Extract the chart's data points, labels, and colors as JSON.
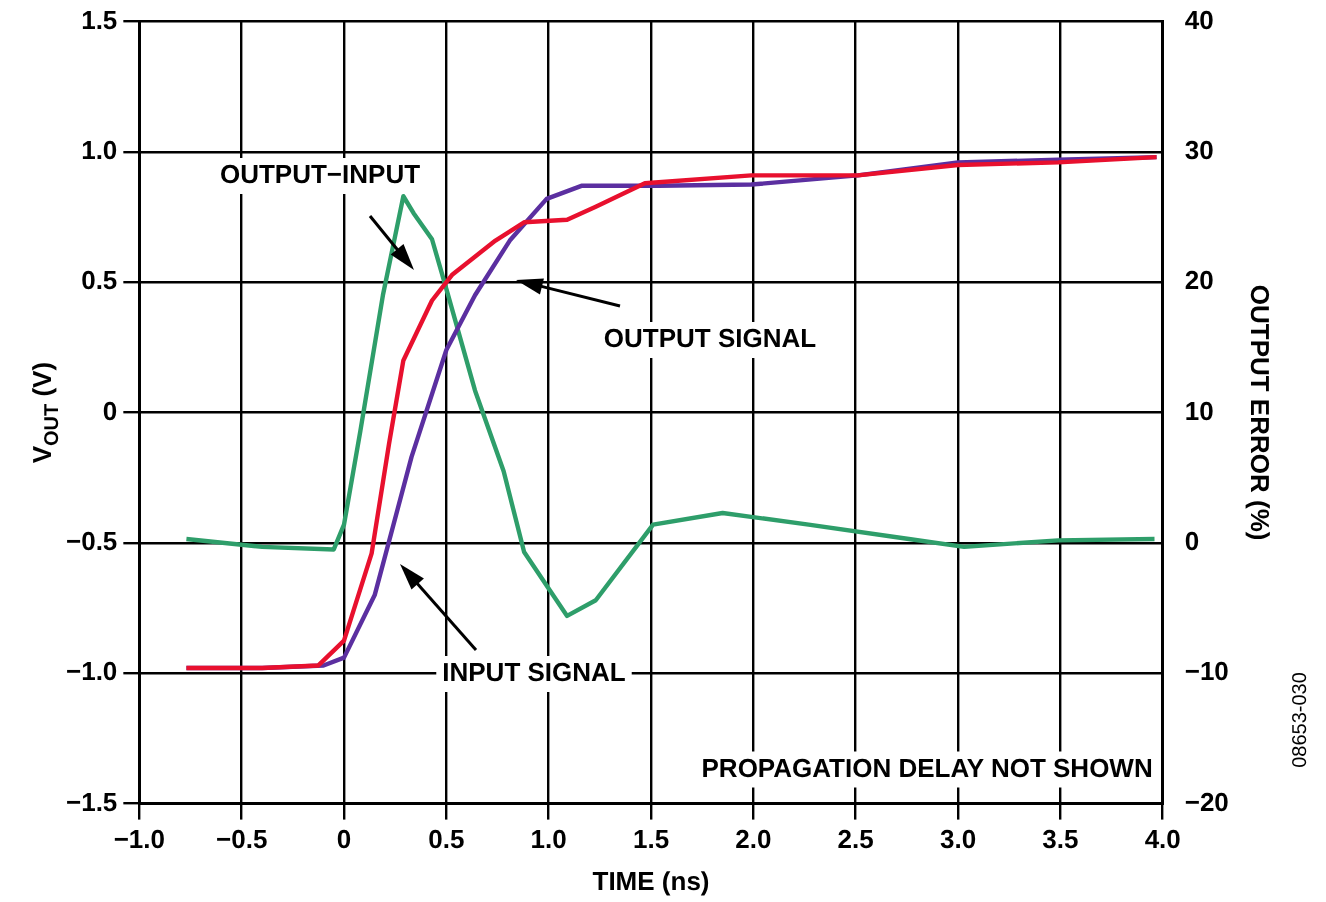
{
  "chart_data": {
    "type": "line",
    "xlabel": "TIME (ns)",
    "ylabel": "V$_{OUT}$ (V)",
    "y2label": "OUTPUT ERROR (%)",
    "series": [
      {
        "color": "#e8102e",
        "x": [
          -0.77,
          -0.4,
          -0.125,
          0,
          0.135,
          0.22,
          0.29,
          0.43,
          0.53,
          0.74,
          0.88,
          1.09,
          1.23,
          1.47,
          1.99,
          2.51,
          3.0,
          3.49,
          3.97
        ],
        "values": [
          -0.98,
          -0.98,
          -0.97,
          -0.875,
          -0.54,
          -0.12,
          0.2,
          0.43,
          0.53,
          0.66,
          0.73,
          0.74,
          0.79,
          0.88,
          0.91,
          0.91,
          0.95,
          0.96,
          0.98
        ]
      },
      {
        "color": "#5b2fa0",
        "x": [
          -0.77,
          -0.4,
          -0.1,
          0,
          0.15,
          0.33,
          0.5,
          0.64,
          0.81,
          0.99,
          1.16,
          1.54,
          1.99,
          2.51,
          3.0,
          3.49,
          3.97
        ],
        "values": [
          -0.98,
          -0.98,
          -0.97,
          -0.94,
          -0.7,
          -0.17,
          0.24,
          0.45,
          0.66,
          0.82,
          0.87,
          0.87,
          0.875,
          0.91,
          0.96,
          0.97,
          0.98
        ]
      },
      {
        "color": "#2e9e6a",
        "axis": "y2",
        "x": [
          -0.77,
          -0.4,
          -0.05,
          0,
          0.08,
          0.19,
          0.29,
          0.34,
          0.43,
          0.5,
          0.64,
          0.78,
          0.88,
          1.09,
          1.23,
          1.51,
          1.85,
          2.27,
          2.76,
          3.03,
          3.49,
          3.96
        ],
        "values": [
          0.3,
          -0.3,
          -0.5,
          1.4,
          8.6,
          19,
          26.6,
          25.3,
          23.3,
          19.5,
          11.7,
          5.5,
          -0.7,
          -5.6,
          -4.4,
          1.4,
          2.3,
          1.4,
          0.3,
          -0.3,
          0.2,
          0.3
        ]
      }
    ],
    "xlim": [
      -1,
      4
    ],
    "xticks": [
      {
        "value": -1,
        "label": "−1.0"
      },
      {
        "value": -0.5,
        "label": "−0.5"
      },
      0,
      {
        "value": 0.5,
        "label": "0.5"
      },
      {
        "value": 1,
        "label": "1.0"
      },
      {
        "value": 1.5,
        "label": "1.5"
      },
      {
        "value": 2,
        "label": "2.0"
      },
      {
        "value": 2.5,
        "label": "2.5"
      },
      {
        "value": 3,
        "label": "3.0"
      },
      {
        "value": 3.5,
        "label": "3.5"
      },
      {
        "value": 4,
        "label": "4.0"
      }
    ],
    "ylim": [
      -1.5,
      1.5
    ],
    "yticks": [
      {
        "value": -1.5,
        "label": "−1.5"
      },
      {
        "value": -1,
        "label": "−1.0"
      },
      {
        "value": -0.5,
        "label": "−0.5"
      },
      0,
      {
        "value": 0.5,
        "label": "0.5"
      },
      {
        "value": 1,
        "label": "1.0"
      },
      {
        "value": 1.5,
        "label": "1.5"
      }
    ],
    "y2lim": [
      -20,
      40
    ],
    "y2ticks": [
      {
        "value": -20,
        "label": "−20"
      },
      {
        "value": -10,
        "label": "−10"
      },
      0,
      10,
      20,
      30,
      40
    ],
    "grid": true,
    "legend": false,
    "marker": "none",
    "line_style": "solid",
    "annotations": [
      "OUTPUT−INPUT",
      "OUTPUT SIGNAL",
      "INPUT SIGNAL",
      "PROPAGATION DELAY NOT SHOWN",
      "08653-030"
    ]
  }
}
